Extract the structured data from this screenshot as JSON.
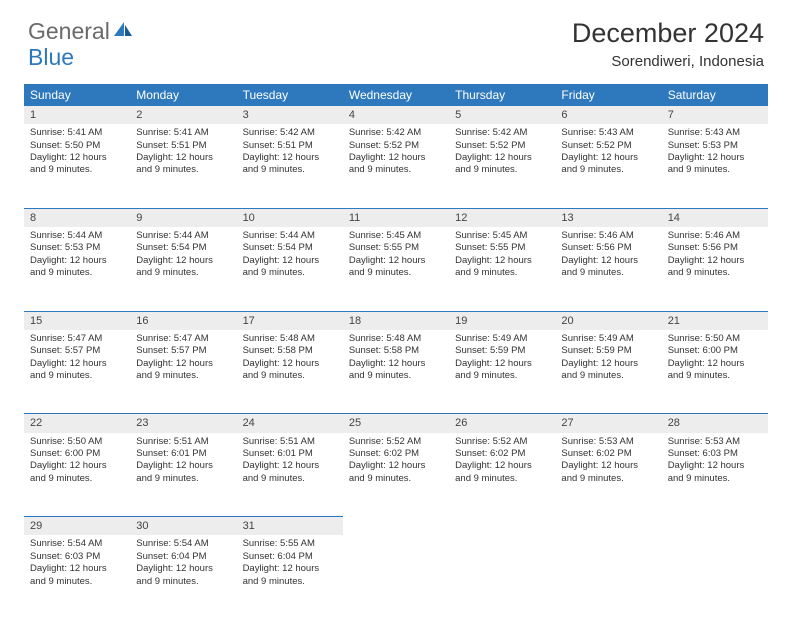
{
  "brand": {
    "word1": "General",
    "word2": "Blue"
  },
  "title": "December 2024",
  "location": "Sorendiweri, Indonesia",
  "colors": {
    "header_bg": "#2e79bd",
    "header_text": "#ffffff",
    "daynum_bg": "#ededed",
    "rule": "#2e79bd",
    "text": "#333333",
    "logo_gray": "#6a6a6a",
    "logo_blue": "#2e79bd"
  },
  "weekdays": [
    "Sunday",
    "Monday",
    "Tuesday",
    "Wednesday",
    "Thursday",
    "Friday",
    "Saturday"
  ],
  "daylight_text": "Daylight: 12 hours and 9 minutes.",
  "weeks": [
    [
      {
        "n": "1",
        "sr": "5:41 AM",
        "ss": "5:50 PM"
      },
      {
        "n": "2",
        "sr": "5:41 AM",
        "ss": "5:51 PM"
      },
      {
        "n": "3",
        "sr": "5:42 AM",
        "ss": "5:51 PM"
      },
      {
        "n": "4",
        "sr": "5:42 AM",
        "ss": "5:52 PM"
      },
      {
        "n": "5",
        "sr": "5:42 AM",
        "ss": "5:52 PM"
      },
      {
        "n": "6",
        "sr": "5:43 AM",
        "ss": "5:52 PM"
      },
      {
        "n": "7",
        "sr": "5:43 AM",
        "ss": "5:53 PM"
      }
    ],
    [
      {
        "n": "8",
        "sr": "5:44 AM",
        "ss": "5:53 PM"
      },
      {
        "n": "9",
        "sr": "5:44 AM",
        "ss": "5:54 PM"
      },
      {
        "n": "10",
        "sr": "5:44 AM",
        "ss": "5:54 PM"
      },
      {
        "n": "11",
        "sr": "5:45 AM",
        "ss": "5:55 PM"
      },
      {
        "n": "12",
        "sr": "5:45 AM",
        "ss": "5:55 PM"
      },
      {
        "n": "13",
        "sr": "5:46 AM",
        "ss": "5:56 PM"
      },
      {
        "n": "14",
        "sr": "5:46 AM",
        "ss": "5:56 PM"
      }
    ],
    [
      {
        "n": "15",
        "sr": "5:47 AM",
        "ss": "5:57 PM"
      },
      {
        "n": "16",
        "sr": "5:47 AM",
        "ss": "5:57 PM"
      },
      {
        "n": "17",
        "sr": "5:48 AM",
        "ss": "5:58 PM"
      },
      {
        "n": "18",
        "sr": "5:48 AM",
        "ss": "5:58 PM"
      },
      {
        "n": "19",
        "sr": "5:49 AM",
        "ss": "5:59 PM"
      },
      {
        "n": "20",
        "sr": "5:49 AM",
        "ss": "5:59 PM"
      },
      {
        "n": "21",
        "sr": "5:50 AM",
        "ss": "6:00 PM"
      }
    ],
    [
      {
        "n": "22",
        "sr": "5:50 AM",
        "ss": "6:00 PM"
      },
      {
        "n": "23",
        "sr": "5:51 AM",
        "ss": "6:01 PM"
      },
      {
        "n": "24",
        "sr": "5:51 AM",
        "ss": "6:01 PM"
      },
      {
        "n": "25",
        "sr": "5:52 AM",
        "ss": "6:02 PM"
      },
      {
        "n": "26",
        "sr": "5:52 AM",
        "ss": "6:02 PM"
      },
      {
        "n": "27",
        "sr": "5:53 AM",
        "ss": "6:02 PM"
      },
      {
        "n": "28",
        "sr": "5:53 AM",
        "ss": "6:03 PM"
      }
    ],
    [
      {
        "n": "29",
        "sr": "5:54 AM",
        "ss": "6:03 PM"
      },
      {
        "n": "30",
        "sr": "5:54 AM",
        "ss": "6:04 PM"
      },
      {
        "n": "31",
        "sr": "5:55 AM",
        "ss": "6:04 PM"
      },
      null,
      null,
      null,
      null
    ]
  ]
}
